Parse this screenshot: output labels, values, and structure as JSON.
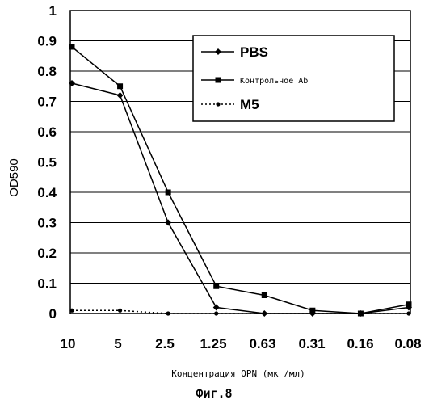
{
  "chart_data": {
    "type": "line",
    "categories": [
      "10",
      "5",
      "2.5",
      "1.25",
      "0.63",
      "0.31",
      "0.16",
      "0.08"
    ],
    "series": [
      {
        "name": "PBS",
        "marker": "diamond",
        "dash": "solid",
        "values": [
          0.76,
          0.72,
          0.3,
          0.02,
          0.0,
          0.0,
          0.0,
          0.02
        ]
      },
      {
        "name": "Контрольное Ab",
        "marker": "square",
        "dash": "solid",
        "values": [
          0.88,
          0.75,
          0.4,
          0.09,
          0.06,
          0.01,
          0.0,
          0.03
        ]
      },
      {
        "name": "M5",
        "marker": "circle",
        "dash": "dotted",
        "values": [
          0.01,
          0.01,
          0.0,
          0.0,
          0.0,
          0.0,
          0.0,
          0.0
        ]
      }
    ],
    "y_ticks": [
      "0",
      "0.1",
      "0.2",
      "0.3",
      "0.4",
      "0.5",
      "0.6",
      "0.7",
      "0.8",
      "0.9",
      "1"
    ],
    "ylim": [
      0,
      1
    ],
    "ylabel": "OD590",
    "xlabel": "Концентрация OPN (мкг/мл)",
    "grid": "horizontal",
    "legend_position": "top-right",
    "caption": "Фиг.8",
    "colors": {
      "line": "#000000",
      "grid": "#000000",
      "background": "#ffffff"
    }
  }
}
